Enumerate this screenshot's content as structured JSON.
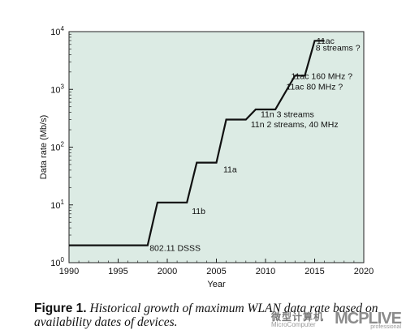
{
  "chart_data": {
    "type": "line",
    "title": "",
    "xlabel": "Year",
    "ylabel": "Data rate (Mb/s)",
    "xlim": [
      1990,
      2020
    ],
    "ylim": [
      1,
      10000
    ],
    "yscale": "log",
    "grid": false,
    "background_color": "#dcebe4",
    "line_color": "#111111",
    "x_ticks": [
      1990,
      1995,
      2000,
      2005,
      2010,
      2015,
      2020
    ],
    "x_tick_labels": [
      "1990",
      "1995",
      "2000",
      "2005",
      "2010",
      "2015",
      "2020"
    ],
    "y_ticks": [
      1,
      10,
      100,
      1000,
      10000
    ],
    "y_tick_labels": [
      {
        "base": "10",
        "exp": "0"
      },
      {
        "base": "10",
        "exp": "1"
      },
      {
        "base": "10",
        "exp": "2"
      },
      {
        "base": "10",
        "exp": "3"
      },
      {
        "base": "10",
        "exp": "4"
      }
    ],
    "series": [
      {
        "points": [
          [
            1990,
            2
          ],
          [
            1998,
            2
          ],
          [
            1999,
            11
          ],
          [
            2002,
            11
          ],
          [
            2003,
            54
          ],
          [
            2005,
            54
          ],
          [
            2006,
            300
          ],
          [
            2008,
            300
          ],
          [
            2009,
            450
          ],
          [
            2011,
            450
          ],
          [
            2013,
            1730
          ],
          [
            2014,
            1730
          ],
          [
            2015,
            6930
          ],
          [
            2016,
            6930
          ]
        ]
      }
    ],
    "annotations": [
      {
        "text": "802.11 DSSS",
        "x": 1998.2,
        "y": 1.6
      },
      {
        "text": "11b",
        "x": 2002.5,
        "y": 7
      },
      {
        "text": "11a",
        "x": 2005.7,
        "y": 37
      },
      {
        "text": "11n 2 streams, 40 MHz",
        "x": 2008.5,
        "y": 220
      },
      {
        "text": "11n 3 streams",
        "x": 2009.5,
        "y": 330
      },
      {
        "text": "11ac 80 MHz ?",
        "x": 2012.1,
        "y": 1000
      },
      {
        "text": "11ac 160 MHz ?",
        "x": 2012.6,
        "y": 1500
      },
      {
        "text": "8 streams ?",
        "x": 2015.1,
        "y": 4700
      },
      {
        "text": "11ac",
        "x": 2015.2,
        "y": 6200
      }
    ]
  },
  "caption": {
    "label": "Figure 1.",
    "text": "Historical growth of maximum WLAN data rate based on availability dates of devices."
  },
  "watermark": {
    "chinese": "微型计算机",
    "english": "MicroComputer",
    "logo": "MCPLIVE",
    "sub": "professional"
  }
}
